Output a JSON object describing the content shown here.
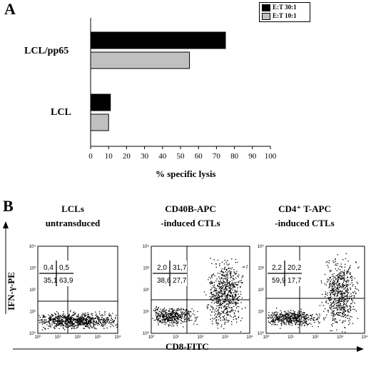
{
  "panel_a": {
    "letter": "A"
  },
  "panel_b": {
    "letter": "B"
  },
  "chart_data": [
    {
      "type": "bar",
      "orientation": "horizontal",
      "categories": [
        "LCL/pp65",
        "LCL"
      ],
      "series": [
        {
          "name": "E:T 30:1",
          "color": "#000000",
          "values": [
            75,
            11
          ]
        },
        {
          "name": "E:T 10:1",
          "color": "#c0c0c0",
          "values": [
            55,
            10
          ]
        }
      ],
      "xlabel": "% specific lysis",
      "xlim": [
        0,
        100
      ],
      "xticks": [
        "0",
        "10",
        "20",
        "30",
        "40",
        "50",
        "60",
        "70",
        "80",
        "90",
        "100"
      ],
      "legend_position": "top-right",
      "grid": false
    },
    {
      "type": "scatter",
      "subtype": "flow-cytometry-quadrant",
      "xlabel": "CD8-FITC",
      "ylabel": "IFN-γ-PE",
      "scale": "log",
      "panels": [
        {
          "title_line1": "LCLs",
          "title_line2": "untransduced",
          "quadrants": {
            "ul": "0,4",
            "ur": "0,5",
            "ll": "35,1",
            "lr": "63,9"
          }
        },
        {
          "title_line1": "CD40B-APC",
          "title_line2": "-induced CTLs",
          "quadrants": {
            "ul": "2,0",
            "ur": "31,7",
            "ll": "38,6",
            "lr": "27,7"
          }
        },
        {
          "title_line1": "CD4⁺ T-APC",
          "title_line2": "-induced CTLs",
          "quadrants": {
            "ul": "2,2",
            "ur": "20,2",
            "ll": "59,9",
            "lr": "17,7"
          }
        }
      ]
    }
  ]
}
